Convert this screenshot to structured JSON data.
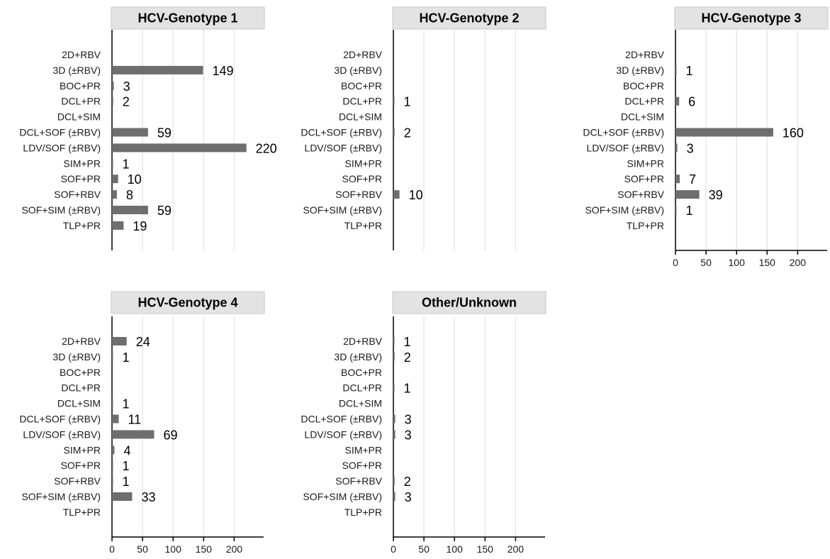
{
  "chart_data": [
    {
      "type": "bar",
      "orientation": "horizontal",
      "title": "HCV-Genotype 1",
      "categories": [
        "2D+RBV",
        "3D (±RBV)",
        "BOC+PR",
        "DCL+PR",
        "DCL+SIM",
        "DCL+SOF (±RBV)",
        "LDV/SOF (±RBV)",
        "SIM+PR",
        "SOF+PR",
        "SOF+RBV",
        "SOF+SIM (±RBV)",
        "TLP+PR"
      ],
      "values": [
        null,
        149,
        3,
        2,
        null,
        59,
        220,
        1,
        10,
        8,
        59,
        19
      ],
      "xlim": [
        0,
        250
      ],
      "xticks": [],
      "grid": true,
      "bar_color": "#6e6e6e"
    },
    {
      "type": "bar",
      "orientation": "horizontal",
      "title": "HCV-Genotype 2",
      "categories": [
        "2D+RBV",
        "3D (±RBV)",
        "BOC+PR",
        "DCL+PR",
        "DCL+SIM",
        "DCL+SOF (±RBV)",
        "LDV/SOF (±RBV)",
        "SIM+PR",
        "SOF+PR",
        "SOF+RBV",
        "SOF+SIM (±RBV)",
        "TLP+PR"
      ],
      "values": [
        null,
        null,
        null,
        1,
        null,
        2,
        null,
        null,
        null,
        10,
        null,
        null
      ],
      "xlim": [
        0,
        250
      ],
      "xticks": [],
      "grid": true,
      "bar_color": "#6e6e6e"
    },
    {
      "type": "bar",
      "orientation": "horizontal",
      "title": "HCV-Genotype 3",
      "categories": [
        "2D+RBV",
        "3D (±RBV)",
        "BOC+PR",
        "DCL+PR",
        "DCL+SIM",
        "DCL+SOF (±RBV)",
        "LDV/SOF (±RBV)",
        "SIM+PR",
        "SOF+PR",
        "SOF+RBV",
        "SOF+SIM (±RBV)",
        "TLP+PR"
      ],
      "values": [
        null,
        1,
        null,
        6,
        null,
        160,
        3,
        null,
        7,
        39,
        1,
        null
      ],
      "xlim": [
        0,
        250
      ],
      "xticks": [
        "0",
        "50",
        "100",
        "150",
        "200"
      ],
      "grid": true,
      "bar_color": "#6e6e6e"
    },
    {
      "type": "bar",
      "orientation": "horizontal",
      "title": "HCV-Genotype 4",
      "categories": [
        "2D+RBV",
        "3D (±RBV)",
        "BOC+PR",
        "DCL+PR",
        "DCL+SIM",
        "DCL+SOF (±RBV)",
        "LDV/SOF (±RBV)",
        "SIM+PR",
        "SOF+PR",
        "SOF+RBV",
        "SOF+SIM (±RBV)",
        "TLP+PR"
      ],
      "values": [
        24,
        1,
        null,
        null,
        1,
        11,
        69,
        4,
        1,
        1,
        33,
        null
      ],
      "xlim": [
        0,
        250
      ],
      "xticks": [
        "0",
        "50",
        "100",
        "150",
        "200"
      ],
      "grid": true,
      "bar_color": "#6e6e6e"
    },
    {
      "type": "bar",
      "orientation": "horizontal",
      "title": "Other/Unknown",
      "categories": [
        "2D+RBV",
        "3D (±RBV)",
        "BOC+PR",
        "DCL+PR",
        "DCL+SIM",
        "DCL+SOF (±RBV)",
        "LDV/SOF (±RBV)",
        "SIM+PR",
        "SOF+PR",
        "SOF+RBV",
        "SOF+SIM (±RBV)",
        "TLP+PR"
      ],
      "values": [
        1,
        2,
        null,
        1,
        null,
        3,
        3,
        null,
        null,
        2,
        3,
        null
      ],
      "xlim": [
        0,
        250
      ],
      "xticks": [
        "0",
        "50",
        "100",
        "150",
        "200"
      ],
      "grid": true,
      "bar_color": "#6e6e6e"
    }
  ]
}
